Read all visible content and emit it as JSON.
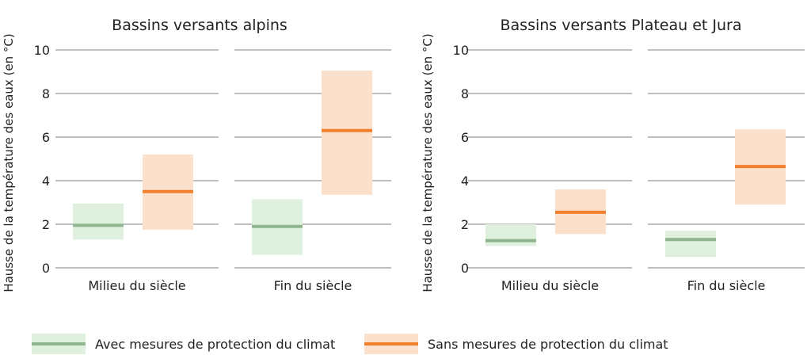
{
  "colors": {
    "with_fill": "#dff0de",
    "with_line": "#8fb48e",
    "without_fill": "#fbe1cc",
    "without_line": "#f07f2e",
    "grid": "#808080",
    "text": "#222222"
  },
  "legend": {
    "with_label": "Avec mesures de protection du climat",
    "without_label": "Sans mesures de protection du climat"
  },
  "chart_data": [
    {
      "type": "bar",
      "title": "Bassins versants alpins",
      "ylabel": "Hausse de la température des eaux (en °C)",
      "ylim": [
        0,
        10
      ],
      "yticks": [
        "0",
        "2",
        "4",
        "6",
        "8",
        "10"
      ],
      "grid": true,
      "categories": [
        "Milieu du siècle",
        "Fin du siècle"
      ],
      "series": [
        {
          "name": "Avec mesures de protection du climat",
          "color_key": "with",
          "low": [
            1.3,
            0.6
          ],
          "high": [
            2.95,
            3.15
          ],
          "median": [
            1.95,
            1.9
          ]
        },
        {
          "name": "Sans mesures de protection du climat",
          "color_key": "without",
          "low": [
            1.75,
            3.35
          ],
          "high": [
            5.2,
            9.05
          ],
          "median": [
            3.5,
            6.3
          ]
        }
      ]
    },
    {
      "type": "bar",
      "title": "Bassins versants Plateau et Jura",
      "ylabel": "Hausse de la température des eaux (en °C)",
      "ylim": [
        0,
        10
      ],
      "yticks": [
        "0",
        "2",
        "4",
        "6",
        "8",
        "10"
      ],
      "grid": true,
      "categories": [
        "Milieu du siècle",
        "Fin du siècle"
      ],
      "series": [
        {
          "name": "Avec mesures de protection du climat",
          "color_key": "with",
          "low": [
            1.0,
            0.5
          ],
          "high": [
            2.0,
            1.7
          ],
          "median": [
            1.25,
            1.3
          ]
        },
        {
          "name": "Sans mesures de protection du climat",
          "color_key": "without",
          "low": [
            1.55,
            2.9
          ],
          "high": [
            3.6,
            6.35
          ],
          "median": [
            2.55,
            4.65
          ]
        }
      ]
    }
  ]
}
